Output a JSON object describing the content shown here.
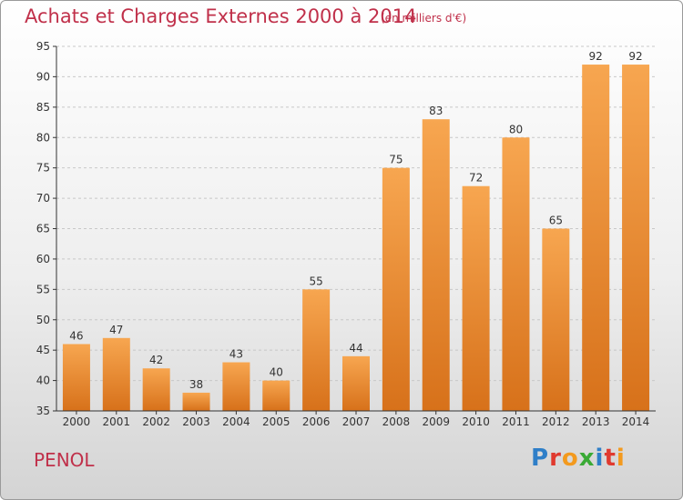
{
  "header": {
    "title": "Achats et Charges Externes 2000 à 2014",
    "subtitle": "(en milliers d'€)"
  },
  "footer": {
    "commune": "PENOL",
    "logo_letters": [
      {
        "ch": "P",
        "color": "#2f7fc8"
      },
      {
        "ch": "r",
        "color": "#e03a2f"
      },
      {
        "ch": "o",
        "color": "#f39a1e"
      },
      {
        "ch": "x",
        "color": "#3aaa35"
      },
      {
        "ch": "i",
        "color": "#2f7fc8"
      },
      {
        "ch": "t",
        "color": "#e03a2f"
      },
      {
        "ch": "i",
        "color": "#f39a1e"
      }
    ]
  },
  "colors": {
    "bar_top": "#f7a650",
    "bar_bottom": "#d7711a",
    "title": "#c0304a",
    "axis": "#333333",
    "grid": "#c8c8c8"
  },
  "chart_data": {
    "type": "bar",
    "title": "Achats et Charges Externes 2000 à 2014",
    "subtitle": "(en milliers d'€)",
    "categories": [
      "2000",
      "2001",
      "2002",
      "2003",
      "2004",
      "2005",
      "2006",
      "2007",
      "2008",
      "2009",
      "2010",
      "2011",
      "2012",
      "2013",
      "2014"
    ],
    "values": [
      46,
      47,
      42,
      38,
      43,
      40,
      55,
      44,
      75,
      83,
      72,
      80,
      65,
      92,
      92
    ],
    "ylim": [
      35,
      95
    ],
    "yticks": [
      35,
      40,
      45,
      50,
      55,
      60,
      65,
      70,
      75,
      80,
      85,
      90,
      95
    ],
    "grid": true,
    "data_labels": true
  }
}
